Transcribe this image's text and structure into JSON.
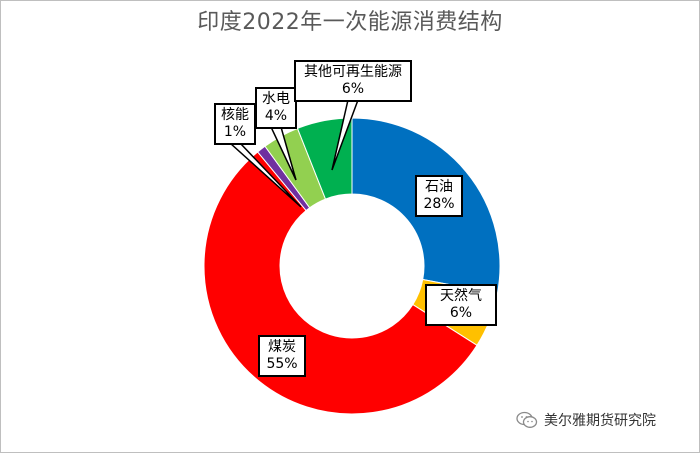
{
  "title": "印度2022年一次能源消费结构",
  "watermark": {
    "text": "美尔雅期货研究院",
    "icon": "wechat-icon"
  },
  "chart_data": {
    "type": "pie",
    "variant": "doughnut",
    "title": "印度2022年一次能源消费结构",
    "slices": [
      {
        "name": "石油",
        "value": 28,
        "label": "28%",
        "color": "#0070c0"
      },
      {
        "name": "天然气",
        "value": 6,
        "label": "6%",
        "color": "#ffc000"
      },
      {
        "name": "煤炭",
        "value": 55,
        "label": "55%",
        "color": "#ff0000"
      },
      {
        "name": "核能",
        "value": 1,
        "label": "1%",
        "color": "#7030a0"
      },
      {
        "name": "水电",
        "value": 4,
        "label": "4%",
        "color": "#92d050"
      },
      {
        "name": "其他可再生能源",
        "value": 6,
        "label": "6%",
        "color": "#00b050"
      }
    ],
    "start_angle_deg": 0,
    "direction": "clockwise",
    "legend": "none",
    "data_labels": "callout boxes with name and percent"
  }
}
